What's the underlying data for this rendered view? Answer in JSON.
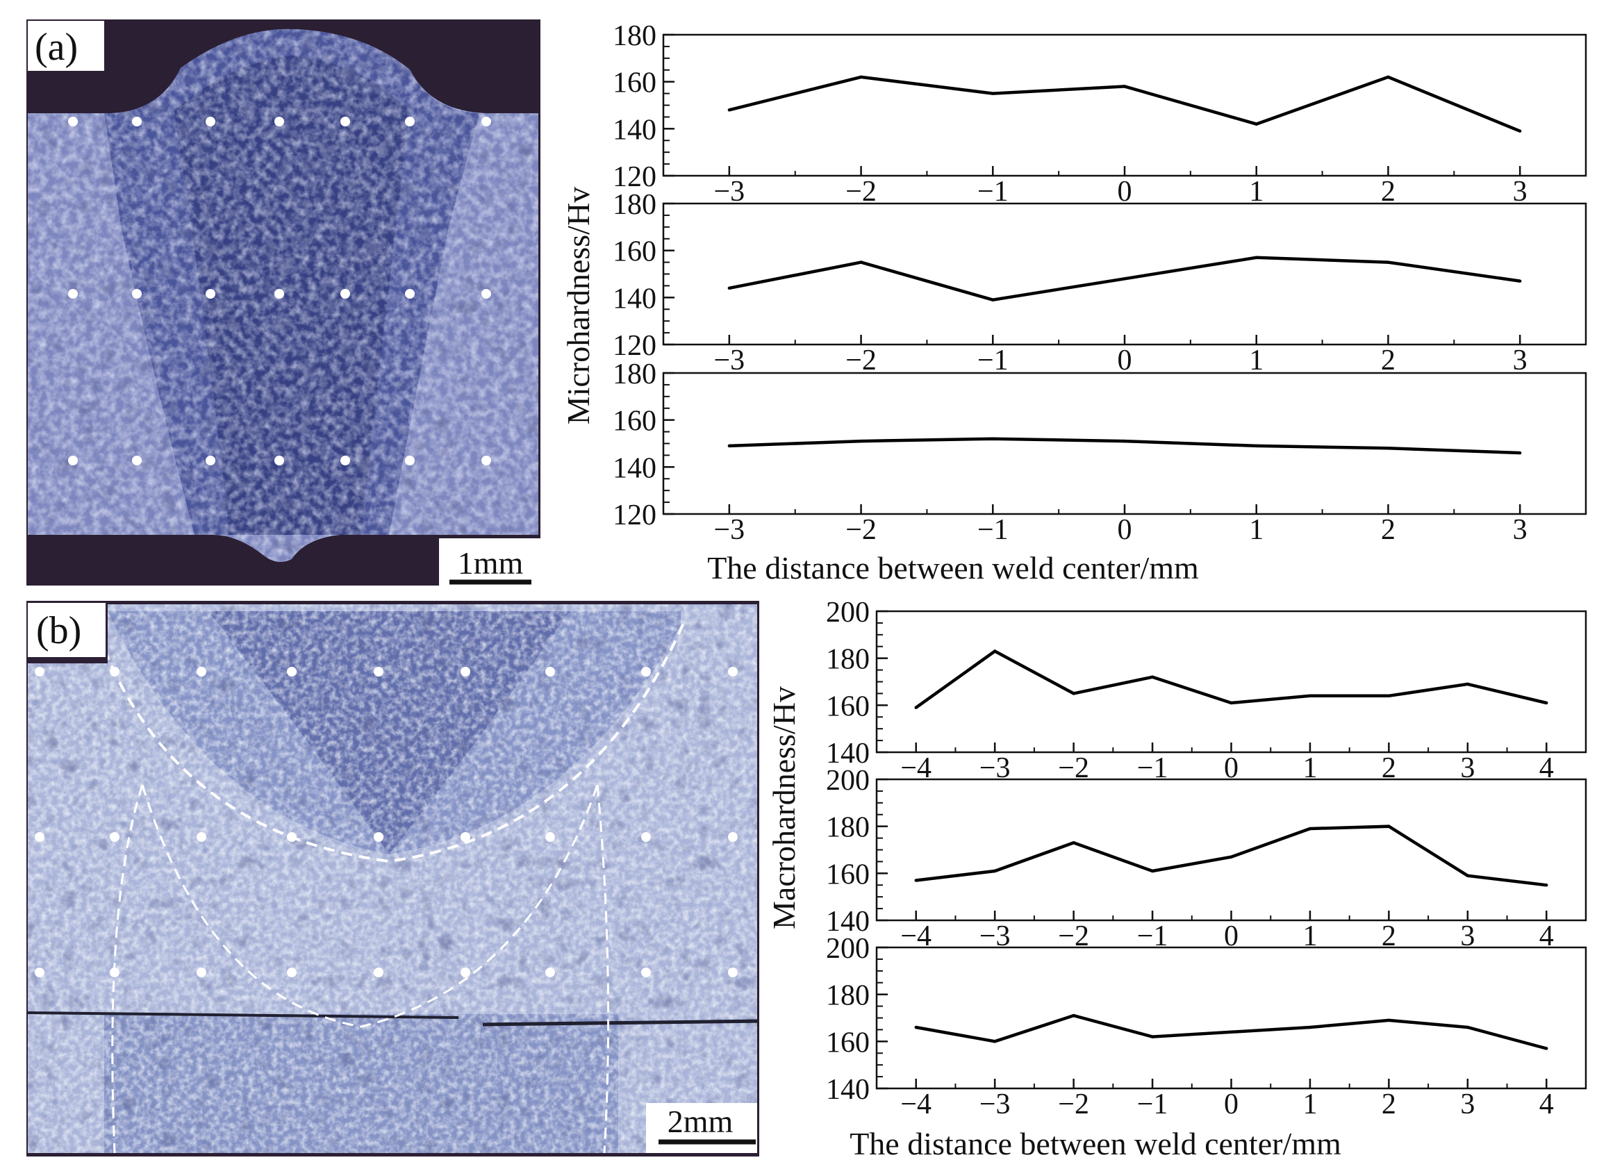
{
  "panel_a": {
    "label": "(a)",
    "scale_bar": "1mm",
    "micrograph_colors": {
      "base": "#7d86be",
      "weld": "#3f4a8c",
      "dark": "#1f2450",
      "background": "#2b1f33"
    }
  },
  "panel_b": {
    "label": "(b)",
    "scale_bar": "2mm",
    "micrograph_colors": {
      "base": "#a9b4d8",
      "weld": "#8a97c8",
      "dark": "#3d4780",
      "background": "#2b1f33"
    }
  },
  "chart_data": [
    {
      "type": "line",
      "ylabel": "Microhardness/Hv",
      "xlabel": "The distance between weld center/mm",
      "x": [
        -3,
        -2,
        -1,
        0,
        1,
        2,
        3
      ],
      "xticklabels": [
        "−3",
        "−2",
        "−1",
        "0",
        "1",
        "2",
        "3"
      ],
      "ylim": [
        120,
        180
      ],
      "yticks": [
        120,
        140,
        160,
        180
      ],
      "grid": false,
      "series": [
        {
          "values": [
            148,
            162,
            155,
            158,
            142,
            162,
            139
          ]
        },
        {
          "values": [
            144,
            155,
            139,
            148,
            157,
            155,
            147
          ]
        },
        {
          "values": [
            149,
            151,
            152,
            151,
            149,
            148,
            146
          ]
        }
      ]
    },
    {
      "type": "line",
      "ylabel": "Macrohardness/Hv",
      "xlabel": "The distance between weld center/mm",
      "x": [
        -4,
        -3,
        -2,
        -1,
        0,
        1,
        2,
        3,
        4
      ],
      "xticklabels": [
        "−4",
        "−3",
        "−2",
        "−1",
        "0",
        "1",
        "2",
        "3",
        "4"
      ],
      "ylim": [
        140,
        200
      ],
      "yticks": [
        140,
        160,
        180,
        200
      ],
      "grid": false,
      "series": [
        {
          "values": [
            159,
            183,
            165,
            172,
            161,
            164,
            164,
            169,
            161
          ]
        },
        {
          "values": [
            157,
            161,
            173,
            161,
            167,
            179,
            180,
            159,
            155
          ]
        },
        {
          "values": [
            166,
            160,
            171,
            162,
            164,
            166,
            169,
            166,
            157
          ]
        }
      ]
    }
  ]
}
